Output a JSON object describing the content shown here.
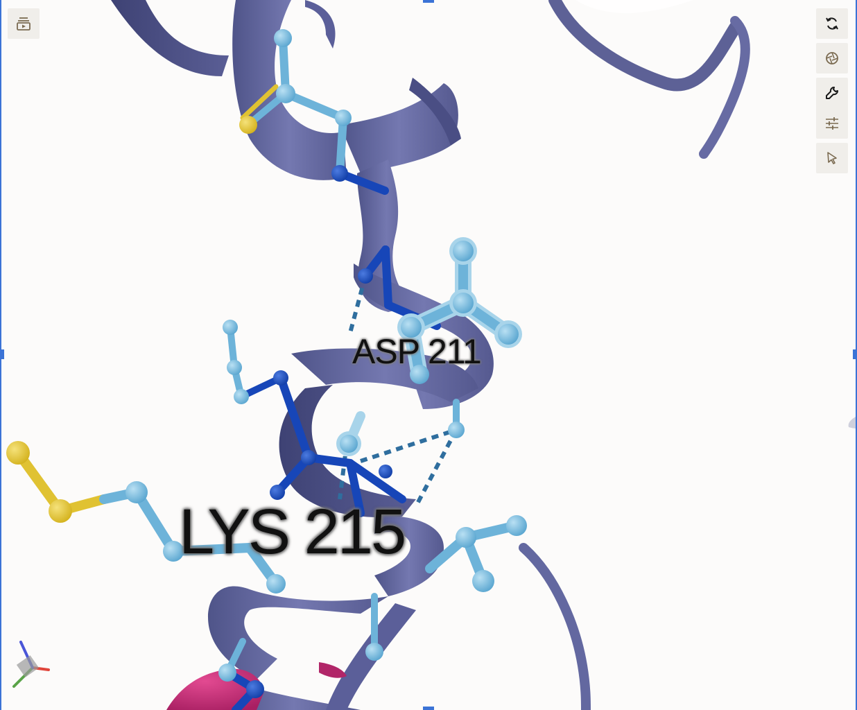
{
  "viewer": {
    "background": "#fcfbfa",
    "cartoon_color": "#6b6fa8",
    "carbon_color": "#6db3d9",
    "nitrogen_color": "#1746b8",
    "sulfur_color": "#e0c232",
    "ligand_color": "#c8327a",
    "hbond_color": "#2f6e9e"
  },
  "labels": {
    "residue_1": "ASP 211",
    "residue_2": "LYS 215"
  },
  "controls": {
    "left": {
      "icon": "sequence-panel-icon"
    },
    "right": [
      {
        "icon": "reset-camera-icon"
      },
      {
        "icon": "screenshot-icon"
      },
      {
        "icon": "tools-icon"
      },
      {
        "icon": "settings-icon"
      },
      {
        "icon": "selection-mode-icon"
      }
    ]
  },
  "axes": {
    "x_color": "#e0453b",
    "y_color": "#5aa348",
    "z_color": "#4a56d8"
  }
}
